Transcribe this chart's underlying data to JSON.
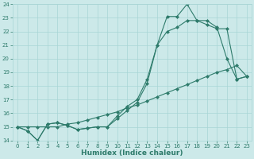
{
  "xlabel": "Humidex (Indice chaleur)",
  "x": [
    0,
    1,
    2,
    3,
    4,
    5,
    6,
    7,
    8,
    9,
    10,
    11,
    12,
    13,
    14,
    15,
    16,
    17,
    18,
    19,
    20,
    21,
    22,
    23
  ],
  "line1": [
    15.0,
    14.7,
    14.0,
    15.2,
    15.3,
    15.1,
    14.8,
    14.9,
    15.0,
    15.0,
    15.8,
    16.5,
    17.0,
    18.5,
    21.0,
    23.1,
    23.1,
    24.0,
    22.8,
    22.8,
    22.3,
    20.0,
    18.5,
    18.7
  ],
  "line2": [
    15.0,
    14.7,
    14.0,
    15.2,
    15.3,
    15.1,
    14.8,
    14.9,
    15.0,
    15.0,
    15.6,
    16.2,
    16.8,
    18.2,
    21.0,
    22.0,
    22.3,
    22.8,
    22.8,
    22.5,
    22.2,
    22.2,
    18.5,
    18.7
  ],
  "line3": [
    15.0,
    15.0,
    15.0,
    15.0,
    15.0,
    15.2,
    15.3,
    15.5,
    15.7,
    15.9,
    16.1,
    16.4,
    16.6,
    16.9,
    17.2,
    17.5,
    17.8,
    18.1,
    18.4,
    18.7,
    19.0,
    19.2,
    19.5,
    18.7
  ],
  "line_color": "#2e7b6b",
  "bg_color": "#cce9e9",
  "grid_color": "#a8d5d5",
  "ylim": [
    14,
    24
  ],
  "xlim": [
    -0.5,
    23.5
  ],
  "yticks": [
    14,
    15,
    16,
    17,
    18,
    19,
    20,
    21,
    22,
    23,
    24
  ],
  "xticks": [
    0,
    1,
    2,
    3,
    4,
    5,
    6,
    7,
    8,
    9,
    10,
    11,
    12,
    13,
    14,
    15,
    16,
    17,
    18,
    19,
    20,
    21,
    22,
    23
  ]
}
